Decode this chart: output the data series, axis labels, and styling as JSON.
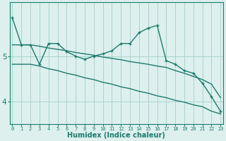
{
  "xlabel": "Humidex (Indice chaleur)",
  "x": [
    0,
    1,
    2,
    3,
    4,
    5,
    6,
    7,
    8,
    9,
    10,
    11,
    12,
    13,
    14,
    15,
    16,
    17,
    18,
    19,
    20,
    21,
    22,
    23
  ],
  "xlabels": [
    "0",
    "1",
    "2",
    "3",
    "4",
    "5",
    "6",
    "7",
    "8",
    "9",
    "10",
    "11",
    "12",
    "13",
    "14",
    "15",
    "16",
    "17",
    "18",
    "19",
    "20",
    "21",
    "22",
    "23"
  ],
  "y_main": [
    5.85,
    5.25,
    5.25,
    4.82,
    5.28,
    5.28,
    5.1,
    5.0,
    4.93,
    5.0,
    5.05,
    5.12,
    5.28,
    5.28,
    5.52,
    5.62,
    5.68,
    4.9,
    4.82,
    4.68,
    4.62,
    4.4,
    4.1,
    3.78
  ],
  "y_line1": [
    5.25,
    5.25,
    5.25,
    5.22,
    5.18,
    5.15,
    5.12,
    5.08,
    5.05,
    5.02,
    4.98,
    4.95,
    4.92,
    4.88,
    4.85,
    4.82,
    4.78,
    4.75,
    4.68,
    4.62,
    4.55,
    4.48,
    4.38,
    4.08
  ],
  "y_line2": [
    4.82,
    4.82,
    4.82,
    4.78,
    4.72,
    4.68,
    4.62,
    4.58,
    4.52,
    4.48,
    4.42,
    4.38,
    4.32,
    4.28,
    4.22,
    4.18,
    4.12,
    4.08,
    4.02,
    3.98,
    3.92,
    3.88,
    3.78,
    3.72
  ],
  "bg_color": "#ddf0ee",
  "grid_color": "#aad4cc",
  "line_color": "#1d7a6e",
  "yticks": [
    4,
    5
  ],
  "ylim": [
    3.5,
    6.2
  ],
  "xlim": [
    -0.3,
    23.3
  ]
}
